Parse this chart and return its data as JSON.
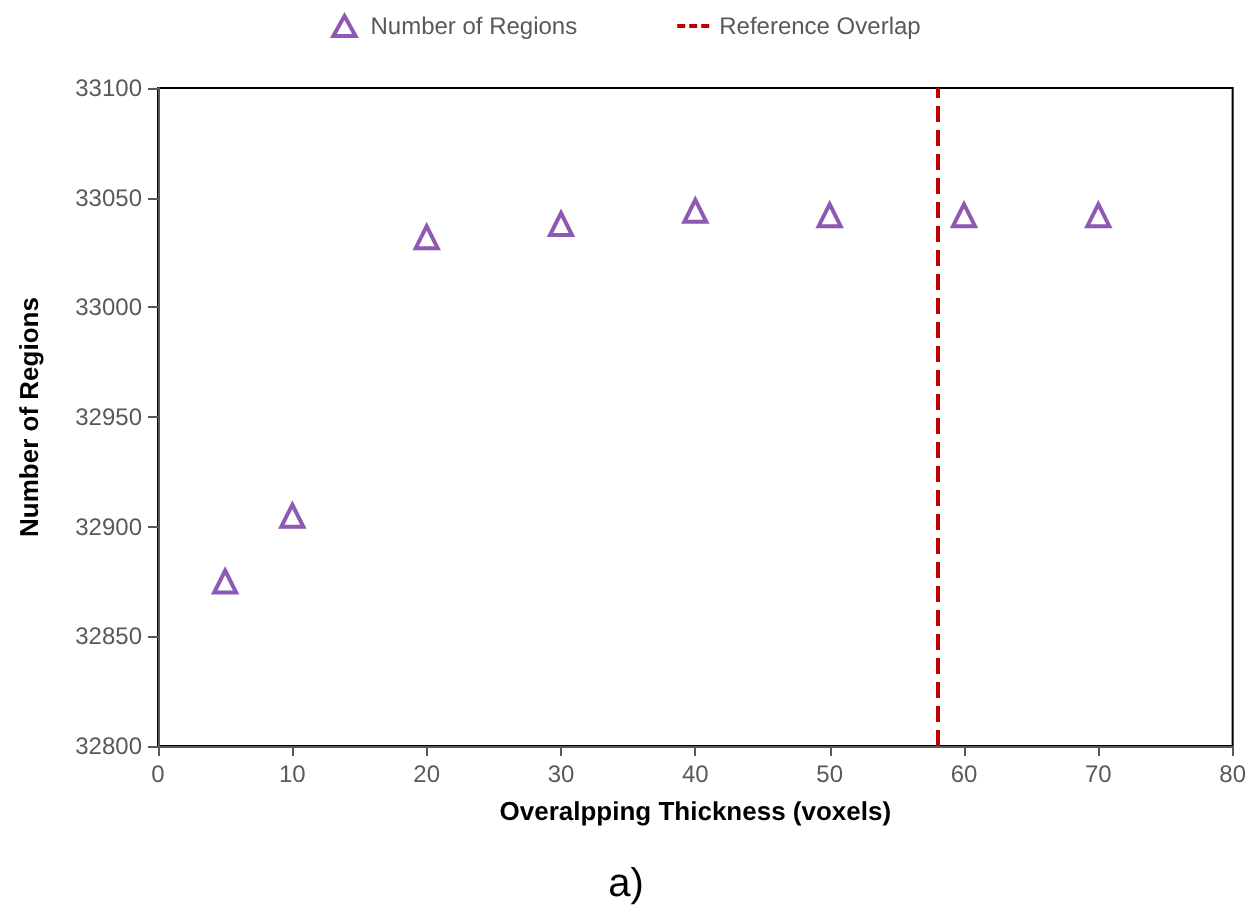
{
  "chart_data": {
    "type": "scatter",
    "xlabel": "Overalpping Thickness (voxels)",
    "ylabel": "Number of Regions",
    "x": [
      5,
      10,
      20,
      30,
      40,
      50,
      60,
      70
    ],
    "series": [
      {
        "name": "Number of Regions",
        "color": "#7030a0",
        "values": [
          32875,
          32905,
          33032,
          33038,
          33044,
          33042,
          33042,
          33042
        ]
      }
    ],
    "xlim": [
      0,
      80
    ],
    "xticks": [
      0,
      10,
      20,
      30,
      40,
      50,
      60,
      70,
      80
    ],
    "ylim": [
      32800,
      33100
    ],
    "yticks": [
      32800,
      32850,
      32900,
      32950,
      33000,
      33050,
      33100
    ],
    "ref_lines": [
      {
        "axis": "x",
        "value": 58,
        "label": "Reference Overlap",
        "color": "#c00000",
        "line_style": "dashed"
      }
    ],
    "annotations": [
      "a)"
    ],
    "marker": "triangle",
    "grid": false,
    "legend": "top"
  }
}
